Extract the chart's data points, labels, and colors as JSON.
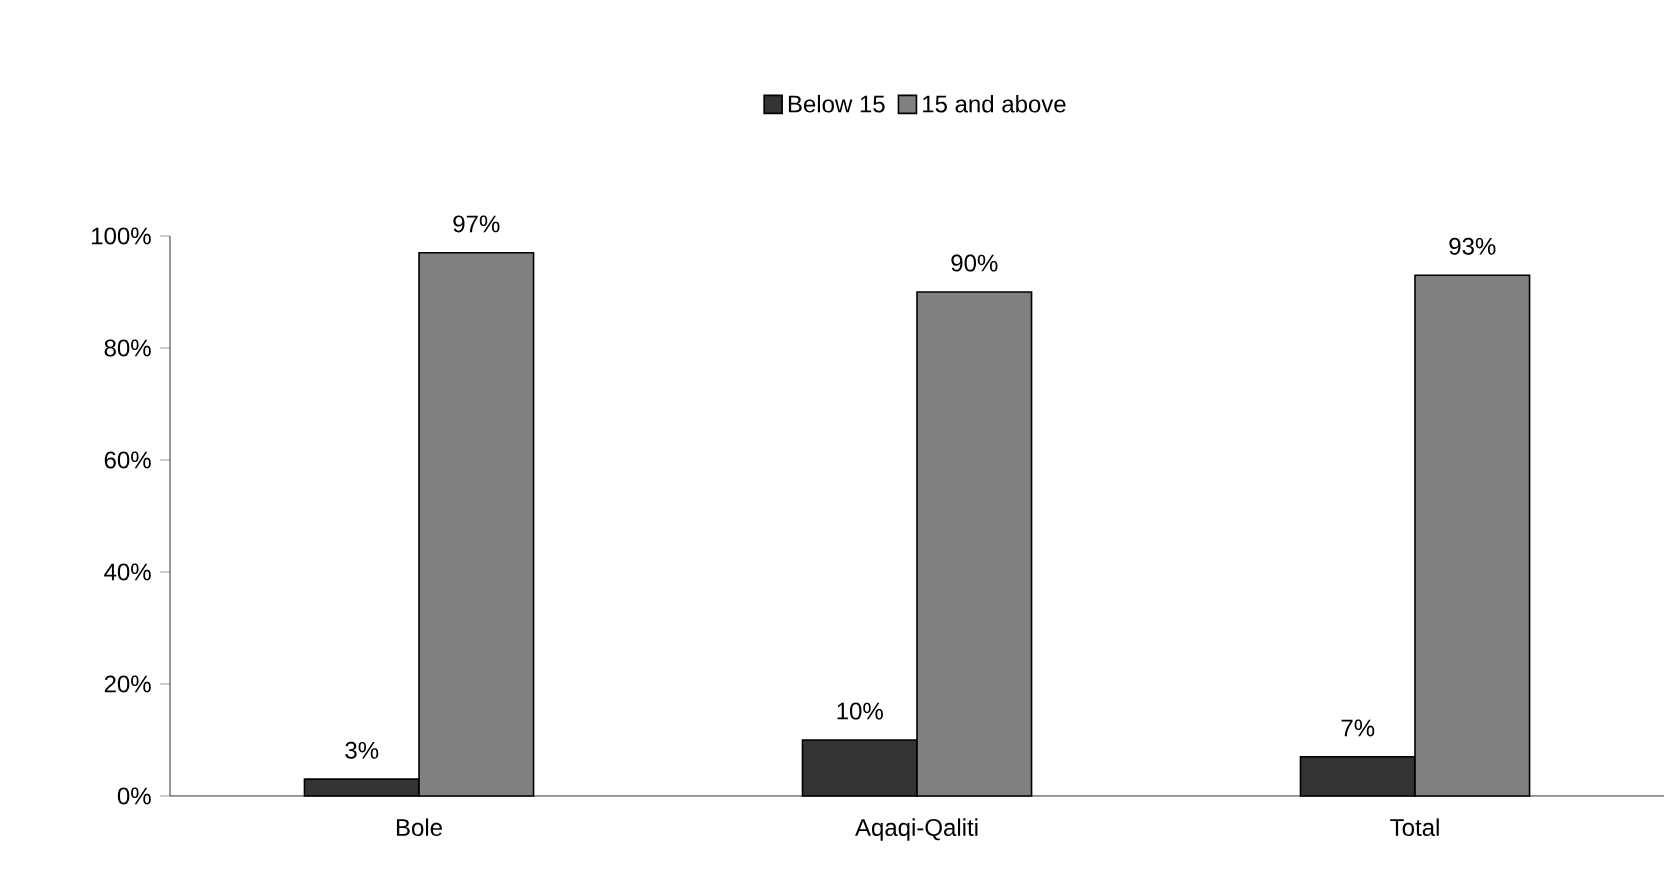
{
  "chart_data": {
    "type": "bar",
    "categories": [
      "Bole",
      "Aqaqi-Qaliti",
      "Total"
    ],
    "series": [
      {
        "name": "Below 15",
        "color": "#333333",
        "values": [
          3,
          10,
          7
        ],
        "value_labels": [
          "3%",
          "10%",
          "7%"
        ]
      },
      {
        "name": "15 and above",
        "color": "#808080",
        "values": [
          97,
          90,
          93
        ],
        "value_labels": [
          "97%",
          "90%",
          "93%"
        ]
      }
    ],
    "ylim": [
      0,
      100
    ],
    "yticks": [
      {
        "value": 0,
        "label": "0%"
      },
      {
        "value": 20,
        "label": "20%"
      },
      {
        "value": 40,
        "label": "40%"
      },
      {
        "value": 60,
        "label": "60%"
      },
      {
        "value": 80,
        "label": "80%"
      },
      {
        "value": 100,
        "label": "100%"
      }
    ],
    "grid": false,
    "legend": "top"
  }
}
